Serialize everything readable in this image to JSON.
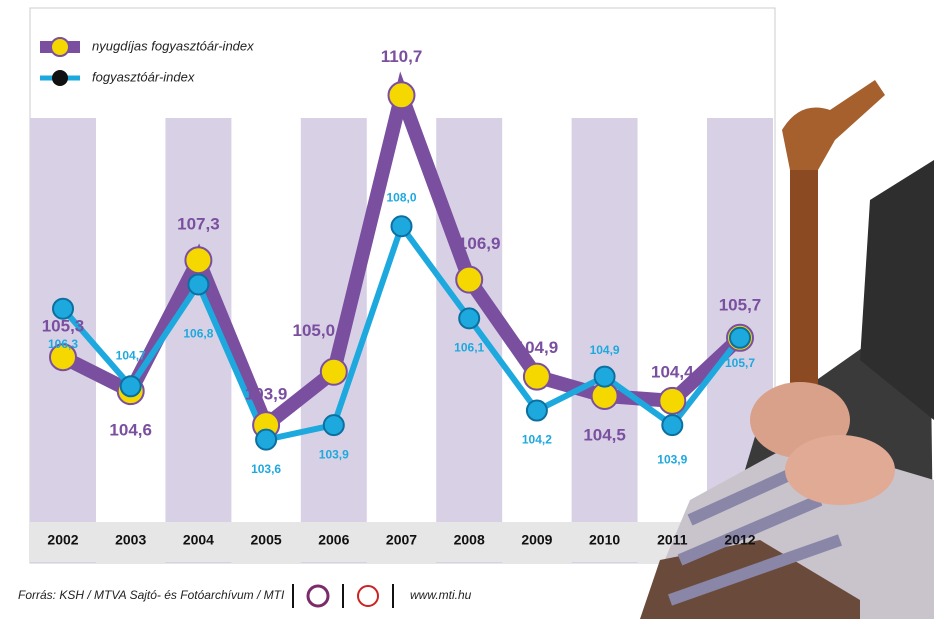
{
  "chart_data": {
    "type": "line",
    "categories": [
      "2002",
      "2003",
      "2004",
      "2005",
      "2006",
      "2007",
      "2008",
      "2009",
      "2010",
      "2011",
      "2012"
    ],
    "series": [
      {
        "name": "nyugdíjas fogyasztóár-index",
        "color": "#7b4fa0",
        "values": [
          105.3,
          104.6,
          107.3,
          103.9,
          105.0,
          110.7,
          106.9,
          104.9,
          104.5,
          104.4,
          105.7
        ],
        "value_labels": [
          "105,3",
          "104,6",
          "107,3",
          "103,9",
          "105,0",
          "110,7",
          "106,9",
          "104,9",
          "104,5",
          "104,4",
          "105,7"
        ]
      },
      {
        "name": "fogyasztóár-index",
        "color": "#1ea9de",
        "values": [
          106.3,
          104.7,
          106.8,
          103.6,
          103.9,
          108.0,
          106.1,
          104.2,
          104.9,
          103.9,
          105.7
        ],
        "value_labels": [
          "106,3",
          "104,7",
          "106,8",
          "103,6",
          "103,9",
          "108,0",
          "106,1",
          "104,2",
          "104,9",
          "103,9",
          "105,7"
        ]
      }
    ],
    "ylim": [
      102.5,
      112.5
    ],
    "source": "Forrás: KSH / MTVA Sajtó- és Fotóarchívum / MTI",
    "website": "www.mti.hu"
  }
}
